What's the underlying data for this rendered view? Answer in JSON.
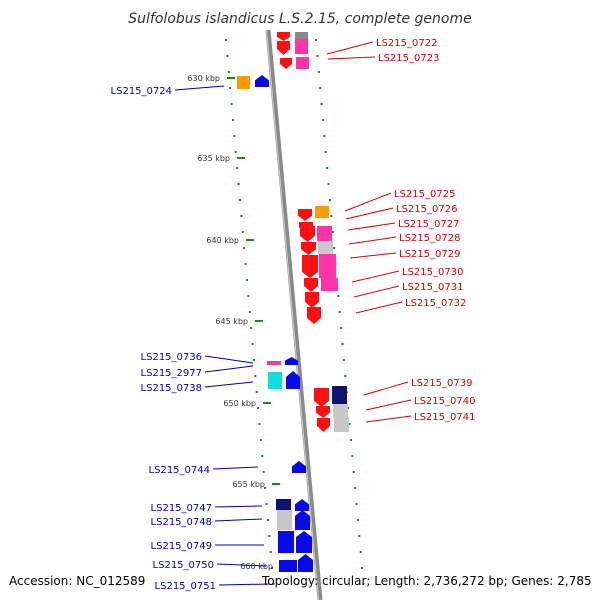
{
  "title": "Sulfolobus islandicus L.S.2.15, complete genome",
  "footer": {
    "accession": "Accession: NC_012589",
    "summary": "Topology: circular; Length: 2,736,272 bp; Genes: 2,785"
  },
  "colors": {
    "backbone": "#8a8a8a",
    "tick": "#1a8a1a",
    "label_right": "#dd0000",
    "label_left": "#0000bb",
    "gene_red": "#ff1010",
    "gene_magenta": "#ff33aa",
    "gene_orange": "#ff9900",
    "gene_blue": "#0a0ae6",
    "gene_navy": "#101070",
    "gene_cyan": "#11dddd",
    "gene_grey": "#c8c8c8"
  },
  "ticks": [
    "630 kbp",
    "635 kbp",
    "640 kbp",
    "645 kbp",
    "650 kbp",
    "655 kbp",
    "660 kbp"
  ],
  "labels_right": [
    "LS215_0722",
    "LS215_0723",
    "LS215_0725",
    "LS215_0726",
    "LS215_0727",
    "LS215_0728",
    "LS215_0729",
    "LS215_0730",
    "LS215_0731",
    "LS215_0732",
    "LS215_0739",
    "LS215_0740",
    "LS215_0741"
  ],
  "labels_left": [
    "LS215_0724",
    "LS215_0736",
    "LS215_2977",
    "LS215_0738",
    "LS215_0744",
    "LS215_0747",
    "LS215_0748",
    "LS215_0749",
    "LS215_0750",
    "LS215_0751"
  ]
}
